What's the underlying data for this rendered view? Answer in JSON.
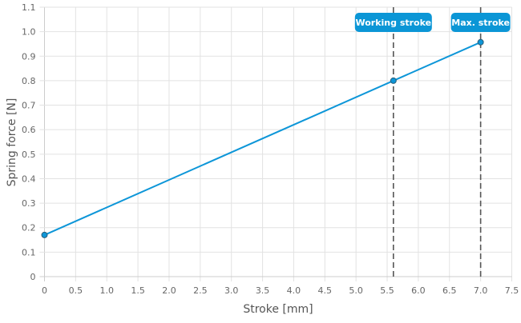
{
  "chart_data": {
    "type": "line",
    "title": "",
    "xlabel": "Stroke [mm]",
    "ylabel": "Spring force [N]",
    "xlim": [
      0,
      7.5
    ],
    "ylim": [
      0,
      1.1
    ],
    "xticks": [
      0,
      0.5,
      1.0,
      1.5,
      2.0,
      2.5,
      3.0,
      3.5,
      4.0,
      4.5,
      5.0,
      5.5,
      6.0,
      6.5,
      7.0,
      7.5
    ],
    "xtick_labels": [
      "0",
      "0.5",
      "1.0",
      "1.5",
      "2.0",
      "2.5",
      "3.0",
      "3.5",
      "4.0",
      "4.5",
      "5.0",
      "5.5",
      "6.0",
      "6.5",
      "7.0",
      "7.5"
    ],
    "yticks": [
      0,
      0.1,
      0.2,
      0.3,
      0.4,
      0.5,
      0.6,
      0.7,
      0.8,
      0.9,
      1.0,
      1.1
    ],
    "ytick_labels": [
      "0",
      "0.1",
      "0.2",
      "0.3",
      "0.4",
      "0.5",
      "0.6",
      "0.7",
      "0.8",
      "0.9",
      "1.0",
      "1.1"
    ],
    "grid": true,
    "series": [
      {
        "x": [
          0,
          5.6,
          7.0
        ],
        "y": [
          0.17,
          0.8,
          0.957
        ],
        "color": "#0d96d8"
      }
    ],
    "annotations": [
      {
        "label": "Working stroke",
        "x": 5.6,
        "style": "dashed-vertical"
      },
      {
        "label": "Max. stroke",
        "x": 7.0,
        "style": "dashed-vertical"
      }
    ],
    "colors": {
      "line": "#0d96d8",
      "badge": "#0b96d6",
      "marker_line": "#555555",
      "grid": "#dddddd",
      "text": "#666666"
    }
  }
}
